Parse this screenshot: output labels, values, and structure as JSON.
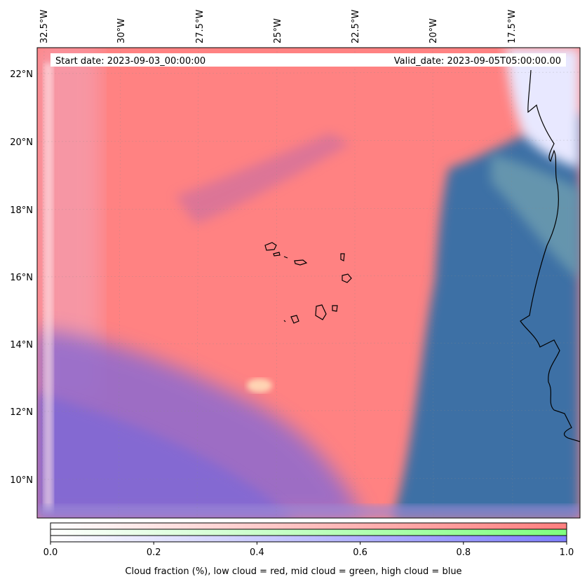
{
  "map": {
    "start_label": "Start date: 2023-09-03_00:00:00",
    "valid_label": "Valid_date: 2023-09-05T05:00:00.00",
    "longitude_labels": [
      "32.5°W",
      "30°W",
      "27.5°W",
      "25°W",
      "22.5°W",
      "20°W",
      "17.5°W"
    ],
    "latitude_labels": [
      "22°N",
      "20°N",
      "18°N",
      "16°N",
      "14°N",
      "12°N",
      "10°N"
    ],
    "layers": [
      {
        "name": "low cloud",
        "color": "#ff7f7f"
      },
      {
        "name": "mid cloud",
        "color": "#7fff7f"
      },
      {
        "name": "high cloud",
        "color": "#7f7fff"
      }
    ]
  },
  "colorbar": {
    "ticks": [
      "0.0",
      "0.2",
      "0.4",
      "0.6",
      "0.8",
      "1.0"
    ],
    "tick_values": [
      0.0,
      0.2,
      0.4,
      0.6,
      0.8,
      1.0
    ],
    "caption": "Cloud fraction (%), low cloud = red, mid cloud = green, high cloud = blue"
  },
  "colors": {
    "low": "#ff7f7f",
    "mid": "#7fff7f",
    "high": "#7f7fff"
  }
}
